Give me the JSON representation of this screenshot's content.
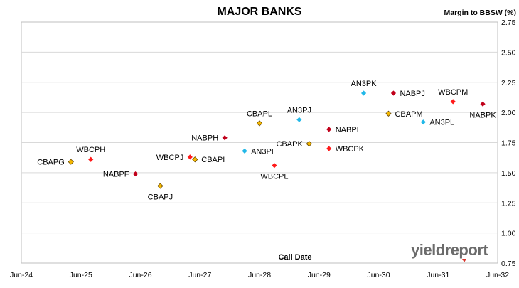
{
  "header": {
    "title": "MAJOR BANKS",
    "ylabel": "Margin to BBSW (%)",
    "xlabel": "Call Date"
  },
  "branding": {
    "logo_text": "yieldreport",
    "accent_color": "#d9342b"
  },
  "colors": {
    "CBA": "#f5b800",
    "WBC": "#ff1a1a",
    "NAB": "#c0001a",
    "ANZ": "#22b8e8",
    "gridline": "#d9d9d9",
    "border": "#bfbfbf"
  },
  "chart_data": {
    "type": "scatter",
    "title": "MAJOR BANKS",
    "xlabel": "Call Date",
    "ylabel": "Margin to BBSW (%)",
    "x_ticks": [
      "Jun-24",
      "Jun-25",
      "Jun-26",
      "Jun-27",
      "Jun-28",
      "Jun-29",
      "Jun-30",
      "Jun-31",
      "Jun-32"
    ],
    "xlim": [
      "2024-06",
      "2032-06"
    ],
    "ylim": [
      0.75,
      2.75
    ],
    "y_ticks": [
      "0.75",
      "1.00",
      "1.25",
      "1.50",
      "1.75",
      "2.00",
      "2.25",
      "2.50",
      "2.75"
    ],
    "grid": "horizontal",
    "points": [
      {
        "label": "CBAPG",
        "x": "2025-04",
        "y": 1.59,
        "issuer": "CBA",
        "label_pos": "left"
      },
      {
        "label": "WBCPH",
        "x": "2025-08",
        "y": 1.61,
        "issuer": "WBC",
        "label_pos": "above"
      },
      {
        "label": "NABPF",
        "x": "2026-05",
        "y": 1.49,
        "issuer": "NAB",
        "label_pos": "left"
      },
      {
        "label": "CBAPJ",
        "x": "2026-10",
        "y": 1.39,
        "issuer": "CBA",
        "label_pos": "below"
      },
      {
        "label": "WBCPJ",
        "x": "2027-04",
        "y": 1.63,
        "issuer": "WBC",
        "label_pos": "left"
      },
      {
        "label": "CBAPI",
        "x": "2027-05",
        "y": 1.61,
        "issuer": "CBA",
        "label_pos": "right"
      },
      {
        "label": "NABPH",
        "x": "2027-11",
        "y": 1.79,
        "issuer": "NAB",
        "label_pos": "left"
      },
      {
        "label": "AN3PI",
        "x": "2028-03",
        "y": 1.68,
        "issuer": "ANZ",
        "label_pos": "right"
      },
      {
        "label": "CBAPL",
        "x": "2028-06",
        "y": 1.91,
        "issuer": "CBA",
        "label_pos": "above"
      },
      {
        "label": "WBCPL",
        "x": "2028-09",
        "y": 1.56,
        "issuer": "WBC",
        "label_pos": "below"
      },
      {
        "label": "AN3PJ",
        "x": "2029-02",
        "y": 1.94,
        "issuer": "ANZ",
        "label_pos": "above"
      },
      {
        "label": "CBAPK",
        "x": "2029-04",
        "y": 1.74,
        "issuer": "CBA",
        "label_pos": "left"
      },
      {
        "label": "NABPI",
        "x": "2029-08",
        "y": 1.86,
        "issuer": "NAB",
        "label_pos": "right"
      },
      {
        "label": "WBCPK",
        "x": "2029-08",
        "y": 1.7,
        "issuer": "WBC",
        "label_pos": "right"
      },
      {
        "label": "AN3PK",
        "x": "2030-03",
        "y": 2.16,
        "issuer": "ANZ",
        "label_pos": "above"
      },
      {
        "label": "CBAPM",
        "x": "2030-08",
        "y": 1.99,
        "issuer": "CBA",
        "label_pos": "right"
      },
      {
        "label": "NABPJ",
        "x": "2030-09",
        "y": 2.16,
        "issuer": "NAB",
        "label_pos": "right"
      },
      {
        "label": "AN3PL",
        "x": "2031-03",
        "y": 1.92,
        "issuer": "ANZ",
        "label_pos": "right"
      },
      {
        "label": "WBCPM",
        "x": "2031-09",
        "y": 2.09,
        "issuer": "WBC",
        "label_pos": "above"
      },
      {
        "label": "NABPK",
        "x": "2032-03",
        "y": 2.07,
        "issuer": "NAB",
        "label_pos": "below"
      }
    ]
  }
}
